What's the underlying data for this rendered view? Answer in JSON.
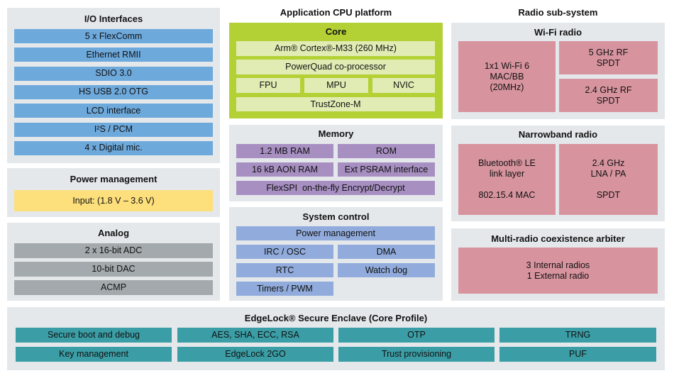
{
  "io": {
    "title": "I/O Interfaces",
    "items": [
      "5 x FlexComm",
      "Ethernet RMII",
      "SDIO 3.0",
      "HS USB 2.0 OTG",
      "LCD interface",
      "I²S / PCM",
      "4 x Digital mic."
    ]
  },
  "power": {
    "title": "Power management",
    "input": "Input: (1.8 V – 3.6 V)"
  },
  "analog": {
    "title": "Analog",
    "items": [
      "2 x 16-bit ADC",
      "10-bit DAC",
      "ACMP"
    ]
  },
  "cpu": {
    "heading": "Application CPU platform",
    "core_title": "Core",
    "cortex": "Arm® Cortex®-M33 (260 MHz)",
    "powerquad": "PowerQuad co-processor",
    "fpu": "FPU",
    "mpu": "MPU",
    "nvic": "NVIC",
    "trustzone": "TrustZone-M"
  },
  "memory": {
    "title": "Memory",
    "ram": "1.2 MB RAM",
    "rom": "ROM",
    "aon": "16 kB AON RAM",
    "psram": "Ext PSRAM interface",
    "flexspi": "FlexSPI  on-the-fly Encrypt/Decrypt"
  },
  "sysctl": {
    "title": "System control",
    "power": "Power management",
    "irc": "IRC / OSC",
    "dma": "DMA",
    "rtc": "RTC",
    "wdog": "Watch dog",
    "timers": "Timers / PWM"
  },
  "radio": {
    "heading": "Radio sub-system",
    "wifi": {
      "title": "Wi-Fi radio",
      "mac": "1x1 Wi-Fi 6\nMAC/BB\n(20MHz)",
      "rf5": "5 GHz RF\nSPDT",
      "rf24": "2.4 GHz RF\nSPDT"
    },
    "nb": {
      "title": "Narrowband radio",
      "ble": "Bluetooth® LE\nlink layer\n\n802.15.4 MAC",
      "lna": "2.4 GHz\nLNA / PA\n\nSPDT"
    },
    "coex": {
      "title": "Multi-radio coexistence arbiter",
      "text": "3 Internal radios\n1 External radio"
    }
  },
  "edgelock": {
    "title": "EdgeLock® Secure Enclave (Core Profile)",
    "items": [
      "Secure boot and debug",
      "AES, SHA, ECC, RSA",
      "OTP",
      "TRNG",
      "Key management",
      "EdgeLock 2GO",
      "Trust provisioning",
      "PUF"
    ]
  },
  "colors": {
    "io": "#6ea9dc",
    "power": "#fddf7c",
    "analog": "#a3a9ac",
    "core": "#b3d135",
    "memory": "#a88fc2",
    "system": "#91acdc",
    "radio": "#d7949e",
    "edgelock": "#3b9ea6",
    "panel": "#e4e8eb"
  }
}
